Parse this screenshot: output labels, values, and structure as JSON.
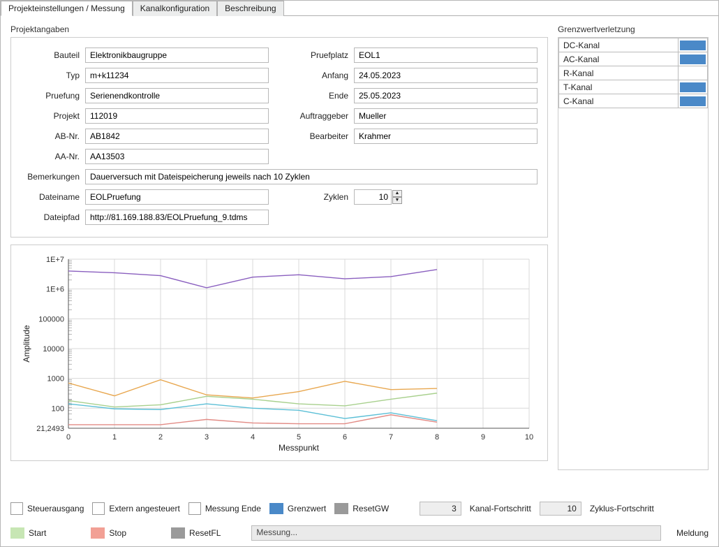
{
  "tabs": {
    "active": "Projekteinstellungen / Messung",
    "t1": "Kanalkonfiguration",
    "t2": "Beschreibung"
  },
  "sections": {
    "projektangaben": "Projektangaben",
    "grenzwert": "Grenzwertverletzung"
  },
  "form": {
    "left": {
      "bauteil_lbl": "Bauteil",
      "bauteil": "Elektronikbaugruppe",
      "typ_lbl": "Typ",
      "typ": "m+k11234",
      "pruefung_lbl": "Pruefung",
      "pruefung": "Serienendkontrolle",
      "projekt_lbl": "Projekt",
      "projekt": "112019",
      "abnr_lbl": "AB-Nr.",
      "abnr": "AB1842",
      "aanr_lbl": "AA-Nr.",
      "aanr": "AA13503"
    },
    "right": {
      "pruefplatz_lbl": "Pruefplatz",
      "pruefplatz": "EOL1",
      "anfang_lbl": "Anfang",
      "anfang": "24.05.2023",
      "ende_lbl": "Ende",
      "ende": "25.05.2023",
      "auftraggeber_lbl": "Auftraggeber",
      "auftraggeber": "Mueller",
      "bearbeiter_lbl": "Bearbeiter",
      "bearbeiter": "Krahmer"
    },
    "bemerkungen_lbl": "Bemerkungen",
    "bemerkungen": "Dauerversuch mit Dateispeicherung jeweils nach 10 Zyklen",
    "dateiname_lbl": "Dateiname",
    "dateiname": "EOLPruefung",
    "zyklen_lbl": "Zyklen",
    "zyklen": "10",
    "dateipfad_lbl": "Dateipfad",
    "dateipfad": "http://81.169.188.83/EOLPruefung_9.tdms"
  },
  "grenz": {
    "rows": [
      {
        "name": "DC-Kanal",
        "on": true
      },
      {
        "name": "AC-Kanal",
        "on": true
      },
      {
        "name": "R-Kanal",
        "on": false
      },
      {
        "name": "T-Kanal",
        "on": true
      },
      {
        "name": "C-Kanal",
        "on": true
      }
    ],
    "r0": "DC-Kanal",
    "r1": "AC-Kanal",
    "r2": "R-Kanal",
    "r3": "T-Kanal",
    "r4": "C-Kanal",
    "color_on": "#4a89c8",
    "color_off": "#ffffff"
  },
  "chart": {
    "type": "line",
    "xlabel": "Messpunkt",
    "ylabel": "Amplitude",
    "scale": "log",
    "xlim": [
      0,
      10
    ],
    "xticks": [
      0,
      1,
      2,
      3,
      4,
      5,
      6,
      7,
      8,
      9,
      10
    ],
    "yticks": [
      21.2493,
      100,
      1000,
      10000,
      100000,
      1000000,
      10000000
    ],
    "ytick_labels": [
      "21,2493",
      "100",
      "1000",
      "10000",
      "100000",
      "1E+6",
      "1E+7"
    ],
    "grid_color": "#d9d9d9",
    "axis_color": "#555",
    "bg": "#ffffff",
    "line_width": 1.4,
    "series": [
      {
        "name": "purple",
        "color": "#8a5fbf",
        "y": [
          4000000,
          3500000,
          2800000,
          1100000,
          2500000,
          3000000,
          2200000,
          2600000,
          4500000
        ]
      },
      {
        "name": "orange",
        "color": "#e8a74f",
        "y": [
          700,
          260,
          900,
          280,
          220,
          360,
          800,
          420,
          460
        ]
      },
      {
        "name": "green",
        "color": "#a8d08d",
        "y": [
          180,
          110,
          130,
          250,
          200,
          140,
          120,
          200,
          320
        ]
      },
      {
        "name": "cyan",
        "color": "#5bbfd6",
        "y": [
          140,
          95,
          90,
          140,
          100,
          85,
          45,
          70,
          38
        ]
      },
      {
        "name": "red",
        "color": "#e28b85",
        "y": [
          28,
          28,
          28,
          42,
          32,
          30,
          30,
          60,
          34
        ]
      }
    ]
  },
  "bottom": {
    "steuer_lbl": "Steuerausgang",
    "extern_lbl": "Extern angesteuert",
    "messung_ende_lbl": "Messung Ende",
    "grenzwert_lbl": "Grenzwert",
    "grenzwert_color": "#4a89c8",
    "resetgw_lbl": "ResetGW",
    "resetgw_color": "#9a9a9a",
    "kanal_fortschritt_lbl": "Kanal-Fortschritt",
    "kanal_fortschritt": "3",
    "zyklus_fortschritt_lbl": "Zyklus-Fortschritt",
    "zyklus_fortschritt": "10",
    "start_lbl": "Start",
    "start_color": "#c7e6b4",
    "stop_lbl": "Stop",
    "stop_color": "#f2a095",
    "resetfl_lbl": "ResetFL",
    "resetfl_color": "#9a9a9a",
    "meldung_lbl": "Meldung",
    "meldung": "Messung..."
  }
}
